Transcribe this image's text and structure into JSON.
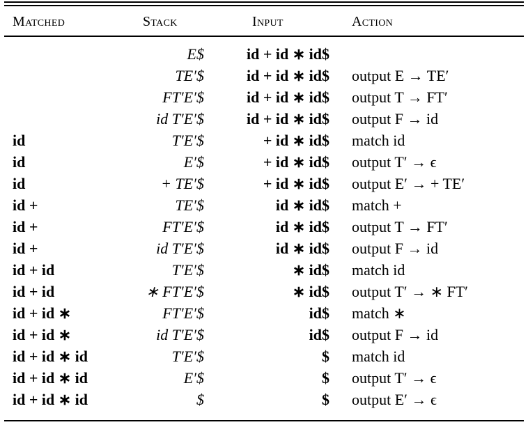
{
  "headers": {
    "matched": "Matched",
    "stack": "Stack",
    "input": "Input",
    "action": "Action"
  },
  "rows": [
    {
      "matched": "",
      "stack": "E$",
      "input": "id + id ∗ id$",
      "action": ""
    },
    {
      "matched": "",
      "stack": "TE′$",
      "input": "id + id ∗ id$",
      "action": "output E → TE′"
    },
    {
      "matched": "",
      "stack": "FT′E′$",
      "input": "id + id ∗ id$",
      "action": "output T → FT′"
    },
    {
      "matched": "",
      "stack": "id T′E′$",
      "input": "id + id ∗ id$",
      "action": "output F → id"
    },
    {
      "matched": "id",
      "stack": "T′E′$",
      "input": "+ id ∗ id$",
      "action": "match id"
    },
    {
      "matched": "id",
      "stack": "E′$",
      "input": "+ id ∗ id$",
      "action": "output T′ → ϵ"
    },
    {
      "matched": "id",
      "stack": "+ TE′$",
      "input": "+ id ∗ id$",
      "action": "output E′ → + TE′"
    },
    {
      "matched": "id +",
      "stack": "TE′$",
      "input": "id ∗ id$",
      "action": "match +"
    },
    {
      "matched": "id +",
      "stack": "FT′E′$",
      "input": "id ∗ id$",
      "action": "output T → FT′"
    },
    {
      "matched": "id +",
      "stack": "id T′E′$",
      "input": "id ∗ id$",
      "action": "output F → id"
    },
    {
      "matched": "id + id",
      "stack": "T′E′$",
      "input": "∗ id$",
      "action": "match id"
    },
    {
      "matched": "id + id",
      "stack": "∗ FT′E′$",
      "input": "∗ id$",
      "action": "output T′ → ∗ FT′"
    },
    {
      "matched": "id + id ∗",
      "stack": "FT′E′$",
      "input": "id$",
      "action": "match ∗"
    },
    {
      "matched": "id + id ∗",
      "stack": "id T′E′$",
      "input": "id$",
      "action": "output F → id"
    },
    {
      "matched": "id + id ∗ id",
      "stack": "T′E′$",
      "input": "$",
      "action": "match id"
    },
    {
      "matched": "id + id ∗ id",
      "stack": "E′$",
      "input": "$",
      "action": "output T′ → ϵ"
    },
    {
      "matched": "id + id ∗ id",
      "stack": "$",
      "input": "$",
      "action": "output E′ → ϵ"
    }
  ]
}
